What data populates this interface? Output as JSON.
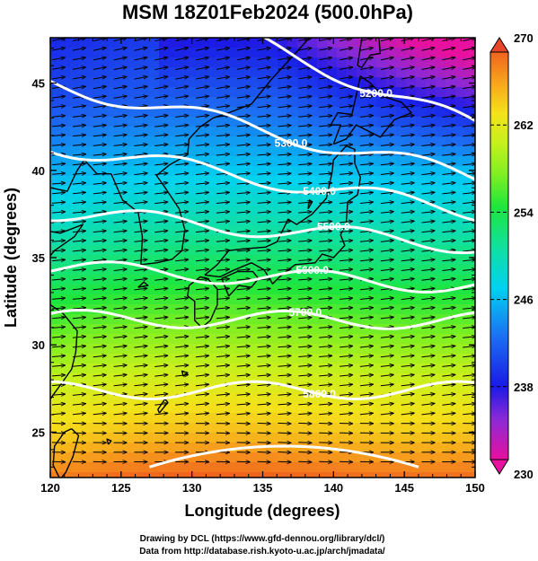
{
  "title": "MSM 18Z01Feb2024 (500.0hPa)",
  "xaxis": {
    "label": "Longitude (degrees)",
    "range": [
      120,
      150
    ],
    "ticks": [
      "120",
      "125",
      "130",
      "135",
      "140",
      "145",
      "150"
    ]
  },
  "yaxis": {
    "label": "Latitude (degrees)",
    "range": [
      22.4,
      47.6
    ],
    "ticks": [
      "25",
      "30",
      "35",
      "40",
      "45"
    ]
  },
  "colorbar": {
    "range": [
      230,
      270
    ],
    "ticks": [
      "270",
      "262",
      "254",
      "246",
      "238",
      "230"
    ],
    "extend": "both"
  },
  "contours": {
    "color": "#ffffff",
    "labels": [
      "5200.0",
      "5300.0",
      "5400.0",
      "5500.0",
      "5600.0",
      "5700.0",
      "5800.0"
    ]
  },
  "credits": {
    "line1": "Drawing by DCL (https://www.gfd-dennou.org/library/dcl/)",
    "line2": "Data from http://database.rish.kyoto-u.ac.jp/arch/jmadata/"
  },
  "colors": {
    "temp_scale": [
      "#e8109e",
      "#7a2ad6",
      "#1a1ae6",
      "#1c6ef2",
      "#00d2f0",
      "#10e0a0",
      "#1ee63c",
      "#80ef22",
      "#c8f01c",
      "#f4e21a",
      "#f8a81c",
      "#f0641e",
      "#e8462a"
    ],
    "contour": "#ffffff",
    "vector": "#000000",
    "coast": "#000000"
  }
}
